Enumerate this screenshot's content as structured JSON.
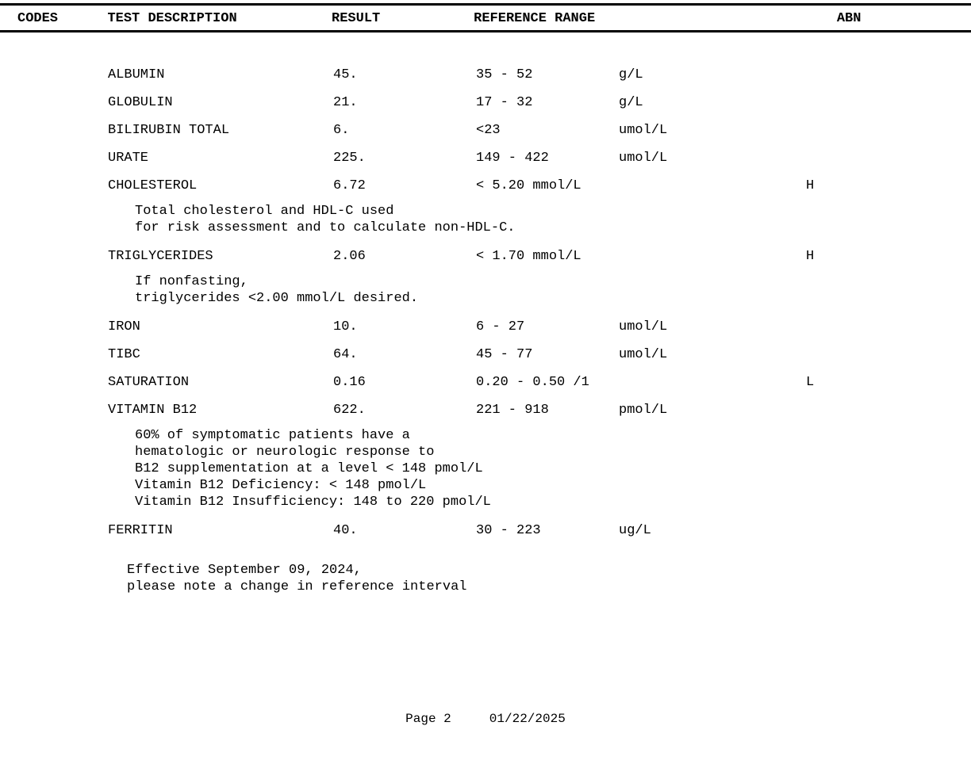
{
  "header": {
    "codes": "CODES",
    "test": "TEST DESCRIPTION",
    "result": "RESULT",
    "range": "REFERENCE RANGE",
    "abn": "ABN"
  },
  "tests": [
    {
      "name": "ALBUMIN",
      "result": "45.",
      "range": "35 - 52",
      "unit": "g/L",
      "flag": ""
    },
    {
      "name": "GLOBULIN",
      "result": "21.",
      "range": "17 - 32",
      "unit": "g/L",
      "flag": ""
    },
    {
      "name": "BILIRUBIN TOTAL",
      "result": "6.",
      "range": "<23",
      "unit": "umol/L",
      "flag": ""
    },
    {
      "name": "URATE",
      "result": "225.",
      "range": "149 - 422",
      "unit": "umol/L",
      "flag": ""
    },
    {
      "name": "CHOLESTEROL",
      "result": "6.72",
      "range": "< 5.20 mmol/L",
      "unit": "",
      "flag": "H"
    }
  ],
  "note1": [
    "Total cholesterol and HDL-C used",
    "for risk assessment and to calculate non-HDL-C."
  ],
  "tests2": [
    {
      "name": "TRIGLYCERIDES",
      "result": "2.06",
      "range": "< 1.70 mmol/L",
      "unit": "",
      "flag": "H"
    }
  ],
  "note2": [
    "If nonfasting,",
    "triglycerides <2.00 mmol/L desired."
  ],
  "tests3": [
    {
      "name": "IRON",
      "result": "10.",
      "range": "6 - 27",
      "unit": "umol/L",
      "flag": ""
    },
    {
      "name": "TIBC",
      "result": "64.",
      "range": "45 - 77",
      "unit": "umol/L",
      "flag": ""
    },
    {
      "name": "SATURATION",
      "result": "0.16",
      "range": "0.20 - 0.50 /1",
      "unit": "",
      "flag": "L"
    },
    {
      "name": "VITAMIN B12",
      "result": "622.",
      "range": "221 - 918",
      "unit": "pmol/L",
      "flag": ""
    }
  ],
  "note3": [
    "60% of symptomatic patients have a",
    "hematologic or neurologic response to",
    "B12 supplementation at a level < 148 pmol/L",
    "Vitamin B12 Deficiency: < 148 pmol/L",
    "Vitamin B12 Insufficiency: 148 to 220 pmol/L"
  ],
  "tests4": [
    {
      "name": "FERRITIN",
      "result": "40.",
      "range": "30 - 223",
      "unit": "ug/L",
      "flag": ""
    }
  ],
  "note4": [
    "Effective September 09, 2024,",
    "please note a change in reference interval"
  ],
  "footer": {
    "page": "Page 2",
    "date": "01/22/2025"
  }
}
